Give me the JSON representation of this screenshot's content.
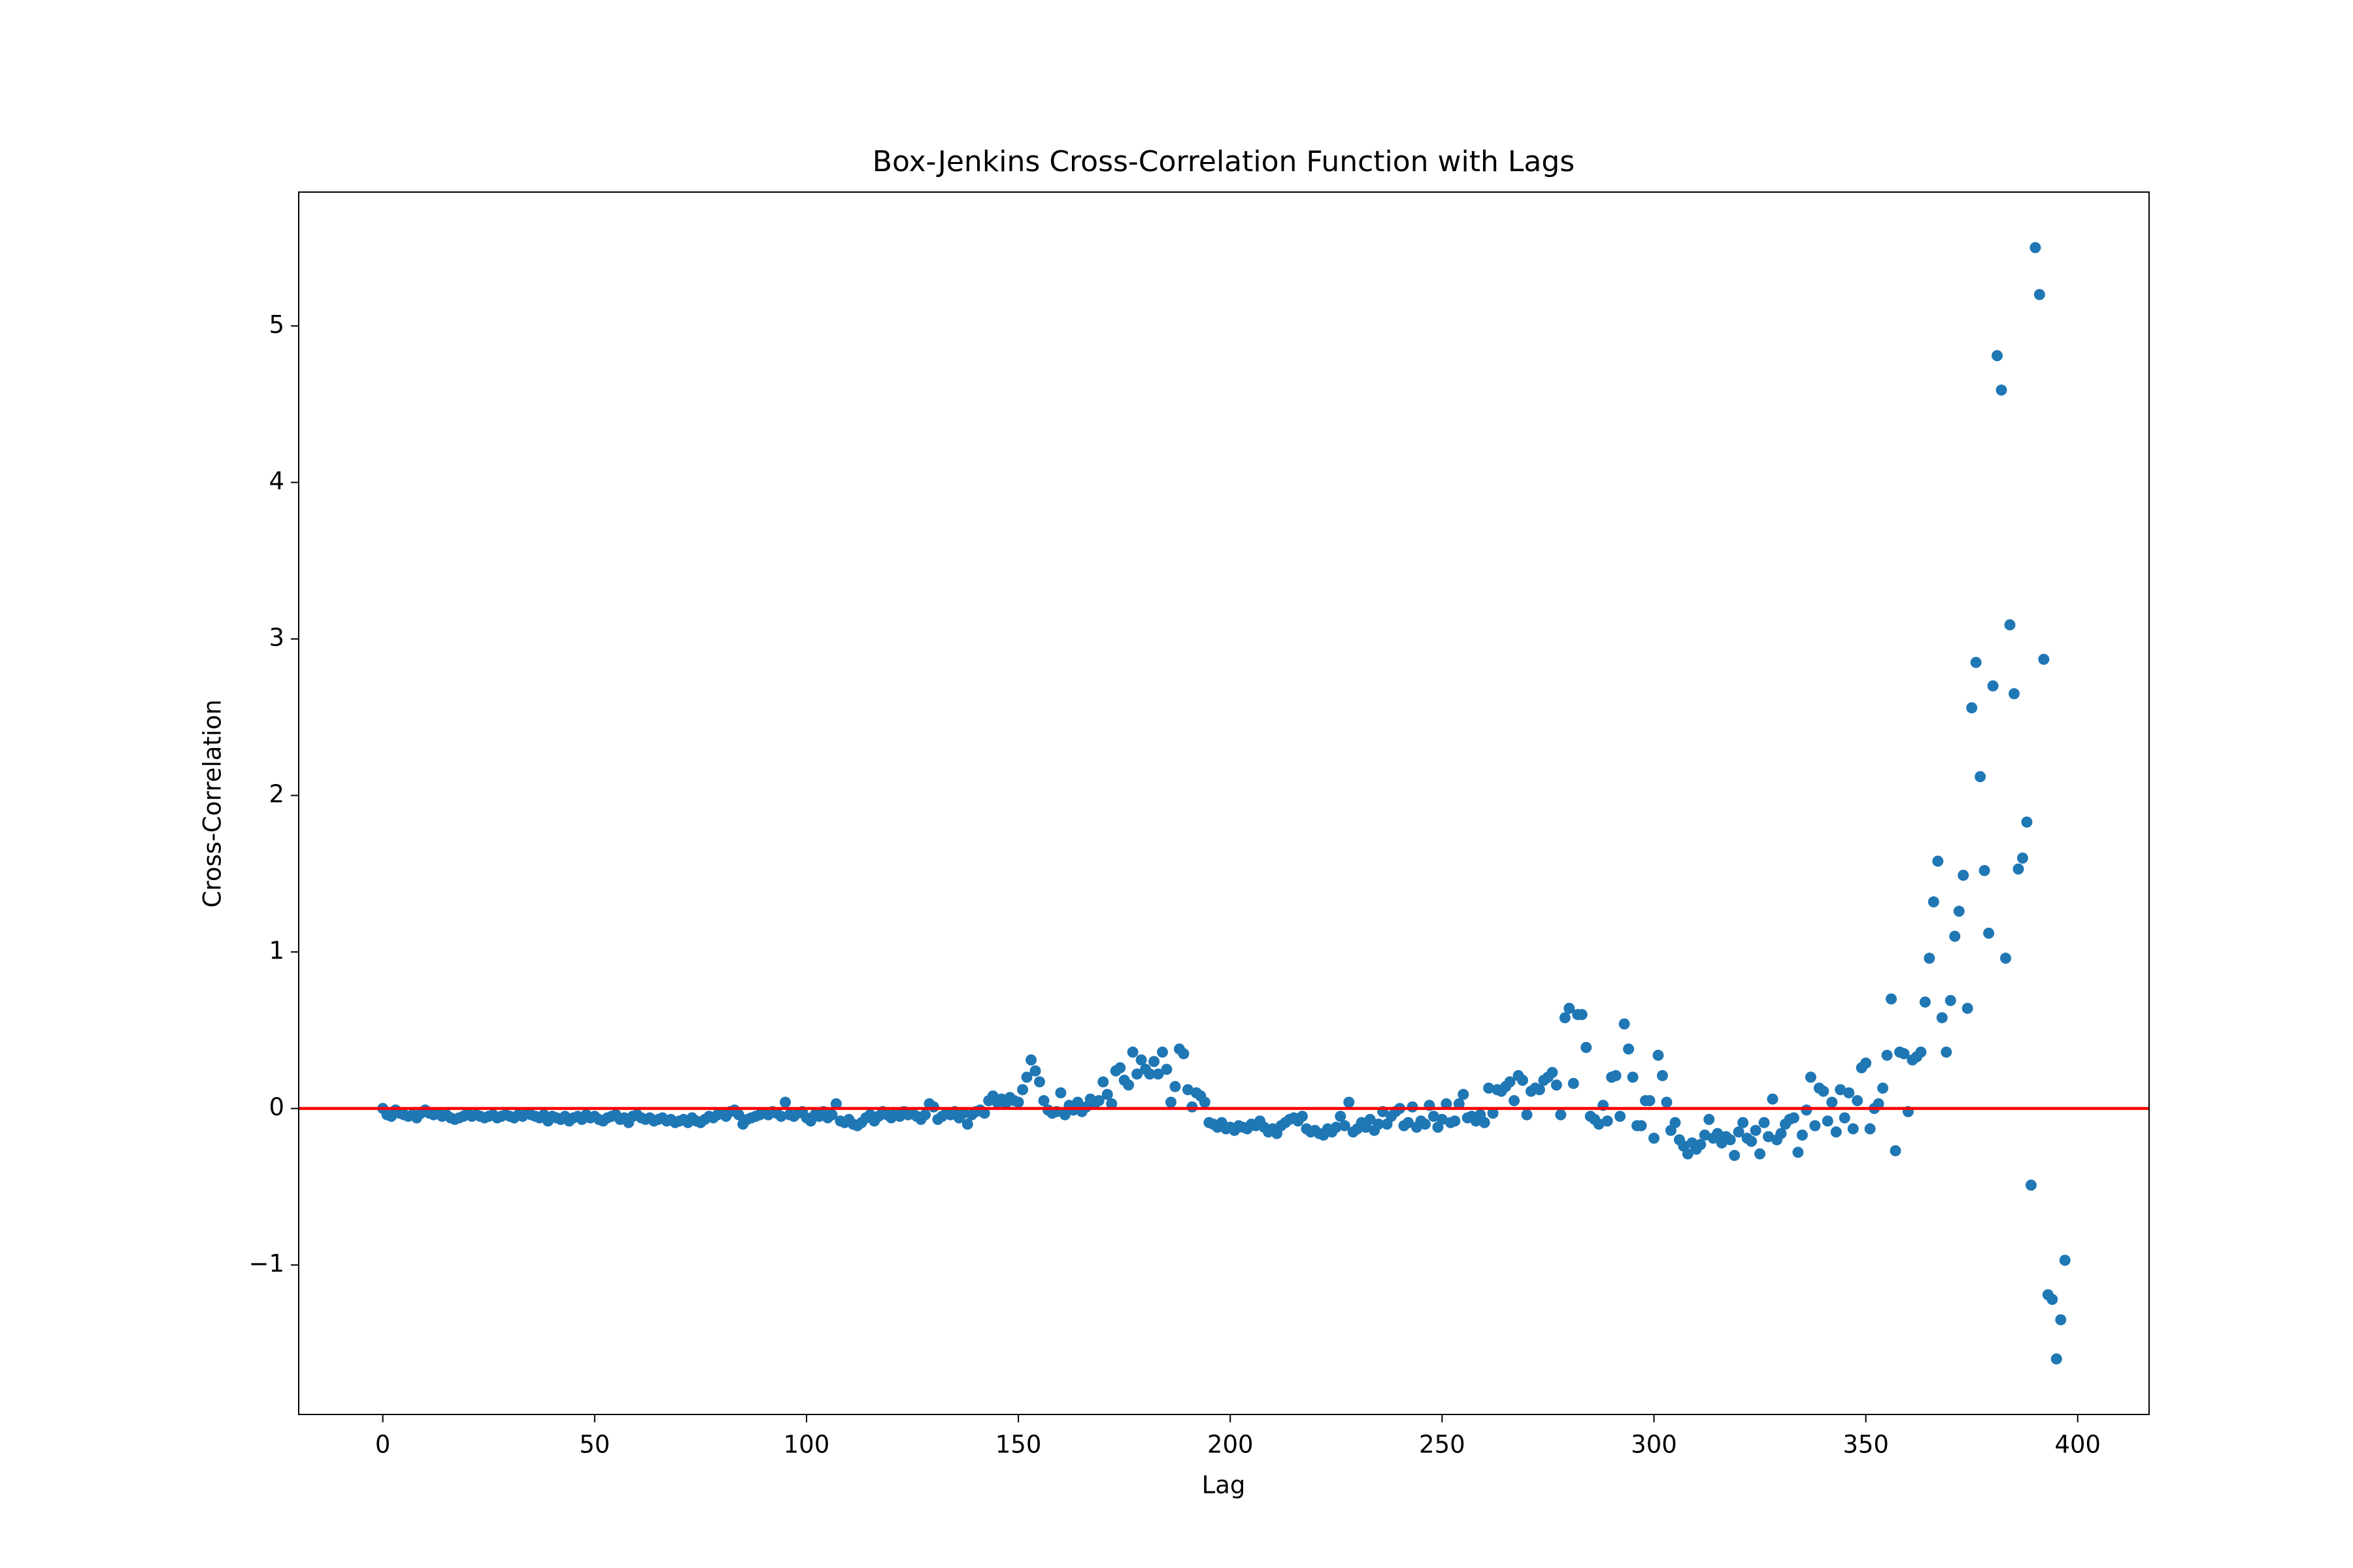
{
  "chart_data": {
    "type": "scatter",
    "title": "Box-Jenkins Cross-Correlation Function with Lags",
    "xlabel": "Lag",
    "ylabel": "Cross-Correlation",
    "color": "#1f77b4",
    "xlim": [
      -19.85,
      416.85
    ],
    "xticks": [
      0,
      50,
      100,
      150,
      200,
      250,
      300,
      350,
      400
    ],
    "ylim": [
      -1.955,
      5.855
    ],
    "yticks": [
      {
        "value": -1,
        "label": "−1"
      },
      0,
      1,
      2,
      3,
      4,
      5
    ],
    "axhline": {
      "y": 0,
      "color": "#ff0000"
    },
    "x": [
      0,
      1,
      2,
      3,
      4,
      5,
      6,
      7,
      8,
      9,
      10,
      11,
      12,
      13,
      14,
      15,
      16,
      17,
      18,
      19,
      20,
      21,
      22,
      23,
      24,
      25,
      26,
      27,
      28,
      29,
      30,
      31,
      32,
      33,
      34,
      35,
      36,
      37,
      38,
      39,
      40,
      41,
      42,
      43,
      44,
      45,
      46,
      47,
      48,
      49,
      50,
      51,
      52,
      53,
      54,
      55,
      56,
      57,
      58,
      59,
      60,
      61,
      62,
      63,
      64,
      65,
      66,
      67,
      68,
      69,
      70,
      71,
      72,
      73,
      74,
      75,
      76,
      77,
      78,
      79,
      80,
      81,
      82,
      83,
      84,
      85,
      86,
      87,
      88,
      89,
      90,
      91,
      92,
      93,
      94,
      95,
      96,
      97,
      98,
      99,
      100,
      101,
      102,
      103,
      104,
      105,
      106,
      107,
      108,
      109,
      110,
      111,
      112,
      113,
      114,
      115,
      116,
      117,
      118,
      119,
      120,
      121,
      122,
      123,
      124,
      125,
      126,
      127,
      128,
      129,
      130,
      131,
      132,
      133,
      134,
      135,
      136,
      137,
      138,
      139,
      140,
      141,
      142,
      143,
      144,
      145,
      146,
      147,
      148,
      149,
      150,
      151,
      152,
      153,
      154,
      155,
      156,
      157,
      158,
      159,
      160,
      161,
      162,
      163,
      164,
      165,
      166,
      167,
      168,
      169,
      170,
      171,
      172,
      173,
      174,
      175,
      176,
      177,
      178,
      179,
      180,
      181,
      182,
      183,
      184,
      185,
      186,
      187,
      188,
      189,
      190,
      191,
      192,
      193,
      194,
      195,
      196,
      197,
      198,
      199,
      200,
      201,
      202,
      203,
      204,
      205,
      206,
      207,
      208,
      209,
      210,
      211,
      212,
      213,
      214,
      215,
      216,
      217,
      218,
      219,
      220,
      221,
      222,
      223,
      224,
      225,
      226,
      227,
      228,
      229,
      230,
      231,
      232,
      233,
      234,
      235,
      236,
      237,
      238,
      239,
      240,
      241,
      242,
      243,
      244,
      245,
      246,
      247,
      248,
      249,
      250,
      251,
      252,
      253,
      254,
      255,
      256,
      257,
      258,
      259,
      260,
      261,
      262,
      263,
      264,
      265,
      266,
      267,
      268,
      269,
      270,
      271,
      272,
      273,
      274,
      275,
      276,
      277,
      278,
      279,
      280,
      281,
      282,
      283,
      284,
      285,
      286,
      287,
      288,
      289,
      290,
      291,
      292,
      293,
      294,
      295,
      296,
      297,
      298,
      299,
      300,
      301,
      302,
      303,
      304,
      305,
      306,
      307,
      308,
      309,
      310,
      311,
      312,
      313,
      314,
      315,
      316,
      317,
      318,
      319,
      320,
      321,
      322,
      323,
      324,
      325,
      326,
      327,
      328,
      329,
      330,
      331,
      332,
      333,
      334,
      335,
      336,
      337,
      338,
      339,
      340,
      341,
      342,
      343,
      344,
      345,
      346,
      347,
      348,
      349,
      350,
      351,
      352,
      353,
      354,
      355,
      356,
      357,
      358,
      359,
      360,
      361,
      362,
      363,
      364,
      365,
      366,
      367,
      368,
      369,
      370,
      371,
      372,
      373,
      374,
      375,
      376,
      377,
      378,
      379,
      380,
      381,
      382,
      383,
      384,
      385,
      386,
      387,
      388,
      389,
      390,
      391,
      392,
      393,
      394,
      395,
      396,
      397
    ],
    "values": [
      0,
      -0.04,
      -0.05,
      -0.01,
      -0.03,
      -0.04,
      -0.05,
      -0.04,
      -0.06,
      -0.03,
      -0.01,
      -0.03,
      -0.04,
      -0.03,
      -0.05,
      -0.04,
      -0.06,
      -0.07,
      -0.06,
      -0.05,
      -0.03,
      -0.05,
      -0.04,
      -0.05,
      -0.06,
      -0.05,
      -0.04,
      -0.06,
      -0.05,
      -0.04,
      -0.05,
      -0.06,
      -0.04,
      -0.05,
      -0.03,
      -0.04,
      -0.05,
      -0.06,
      -0.04,
      -0.08,
      -0.05,
      -0.06,
      -0.07,
      -0.05,
      -0.08,
      -0.06,
      -0.05,
      -0.07,
      -0.04,
      -0.06,
      -0.05,
      -0.07,
      -0.08,
      -0.06,
      -0.05,
      -0.04,
      -0.07,
      -0.06,
      -0.09,
      -0.05,
      -0.04,
      -0.06,
      -0.07,
      -0.06,
      -0.08,
      -0.07,
      -0.06,
      -0.08,
      -0.07,
      -0.09,
      -0.08,
      -0.07,
      -0.09,
      -0.06,
      -0.08,
      -0.09,
      -0.07,
      -0.05,
      -0.06,
      -0.04,
      -0.03,
      -0.05,
      -0.02,
      -0.01,
      -0.04,
      -0.1,
      -0.07,
      -0.06,
      -0.05,
      -0.04,
      -0.03,
      -0.04,
      -0.02,
      -0.03,
      -0.05,
      0.04,
      -0.04,
      -0.05,
      -0.03,
      -0.02,
      -0.06,
      -0.08,
      -0.04,
      -0.05,
      -0.02,
      -0.06,
      -0.04,
      0.03,
      -0.08,
      -0.09,
      -0.07,
      -0.1,
      -0.11,
      -0.09,
      -0.06,
      -0.04,
      -0.08,
      -0.05,
      -0.02,
      -0.04,
      -0.06,
      -0.03,
      -0.05,
      -0.02,
      -0.04,
      -0.03,
      -0.05,
      -0.07,
      -0.04,
      0.03,
      0.01,
      -0.07,
      -0.05,
      -0.03,
      -0.04,
      -0.02,
      -0.06,
      -0.03,
      -0.1,
      -0.04,
      -0.02,
      -0.01,
      -0.03,
      0.05,
      0.08,
      0.04,
      0.06,
      0.03,
      0.07,
      0.05,
      0.04,
      0.12,
      0.2,
      0.31,
      0.24,
      0.17,
      0.05,
      -0.01,
      -0.03,
      -0.02,
      0.1,
      -0.04,
      0.02,
      -0.01,
      0.04,
      -0.02,
      0.01,
      0.06,
      0.03,
      0.05,
      0.17,
      0.09,
      0.03,
      0.24,
      0.26,
      0.18,
      0.15,
      0.36,
      0.22,
      0.31,
      0.25,
      0.22,
      0.3,
      0.22,
      0.36,
      0.25,
      0.04,
      0.14,
      0.38,
      0.35,
      0.12,
      0.01,
      0.1,
      0.08,
      0.04,
      -0.09,
      -0.1,
      -0.12,
      -0.09,
      -0.13,
      -0.12,
      -0.14,
      -0.11,
      -0.12,
      -0.13,
      -0.1,
      -0.11,
      -0.08,
      -0.12,
      -0.15,
      -0.13,
      -0.16,
      -0.11,
      -0.09,
      -0.07,
      -0.06,
      -0.08,
      -0.05,
      -0.13,
      -0.15,
      -0.14,
      -0.16,
      -0.17,
      -0.13,
      -0.15,
      -0.12,
      -0.05,
      -0.11,
      0.04,
      -0.15,
      -0.13,
      -0.09,
      -0.12,
      -0.07,
      -0.14,
      -0.1,
      -0.02,
      -0.1,
      -0.05,
      -0.02,
      0,
      -0.11,
      -0.09,
      0.01,
      -0.12,
      -0.08,
      -0.1,
      0.02,
      -0.05,
      -0.12,
      -0.07,
      0.03,
      -0.09,
      -0.08,
      0.03,
      0.09,
      -0.06,
      -0.05,
      -0.08,
      -0.04,
      -0.09,
      0.13,
      -0.03,
      0.12,
      0.11,
      0.14,
      0.17,
      0.05,
      0.21,
      0.18,
      -0.04,
      0.11,
      0.13,
      0.12,
      0.18,
      0.2,
      0.23,
      0.15,
      -0.04,
      0.58,
      0.64,
      0.16,
      0.6,
      0.6,
      0.39,
      -0.05,
      -0.07,
      -0.1,
      0.02,
      -0.08,
      0.2,
      0.21,
      -0.05,
      0.54,
      0.38,
      0.2,
      -0.11,
      -0.11,
      0.05,
      0.05,
      -0.19,
      0.34,
      0.21,
      0.04,
      -0.14,
      -0.09,
      -0.2,
      -0.24,
      -0.29,
      -0.22,
      -0.26,
      -0.23,
      -0.17,
      -0.07,
      -0.19,
      -0.16,
      -0.22,
      -0.18,
      -0.2,
      -0.3,
      -0.15,
      -0.09,
      -0.19,
      -0.21,
      -0.14,
      -0.29,
      -0.09,
      -0.18,
      0.06,
      -0.2,
      -0.16,
      -0.1,
      -0.07,
      -0.06,
      -0.28,
      -0.17,
      -0.01,
      0.2,
      -0.11,
      0.13,
      0.11,
      -0.08,
      0.04,
      -0.15,
      0.12,
      -0.06,
      0.1,
      -0.13,
      0.05,
      0.26,
      0.29,
      -0.13,
      0,
      0.03,
      0.13,
      0.34,
      0.7,
      -0.27,
      0.36,
      0.35,
      -0.02,
      0.31,
      0.33,
      0.36,
      0.68,
      0.96,
      1.32,
      1.58,
      0.58,
      0.36,
      0.69,
      1.1,
      1.26,
      1.49,
      0.64,
      2.56,
      2.85,
      2.12,
      1.52,
      1.12,
      2.7,
      4.81,
      4.59,
      0.96,
      3.09,
      2.65,
      1.53,
      1.6,
      1.83,
      -0.49,
      5.5,
      5.2,
      2.87,
      -1.19,
      -1.22,
      -1.6,
      -1.35,
      -0.97
    ]
  }
}
